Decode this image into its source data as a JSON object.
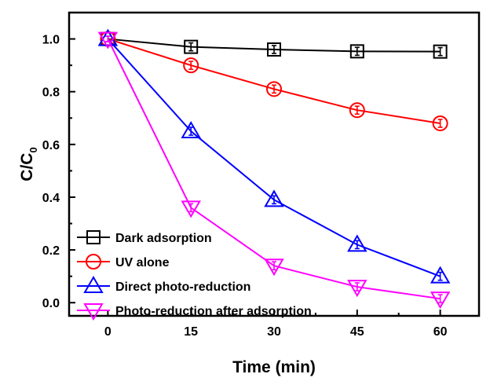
{
  "chart_data": {
    "type": "line",
    "title": "",
    "xlabel": "Time (min)",
    "ylabel": {
      "main": "C/C",
      "sub": "0"
    },
    "xlim": [
      -7,
      67
    ],
    "ylim": [
      -0.05,
      1.1
    ],
    "xticks": [
      0,
      15,
      30,
      45,
      60
    ],
    "xtick_labels": [
      "0",
      "15",
      "30",
      "45",
      "60"
    ],
    "yticks": [
      0.0,
      0.2,
      0.4,
      0.6,
      0.8,
      1.0
    ],
    "ytick_labels": [
      "0.0",
      "0.2",
      "0.4",
      "0.6",
      "0.8",
      "1.0"
    ],
    "grid": false,
    "legend_position": "bottom-left",
    "x": [
      0,
      15,
      30,
      45,
      60
    ],
    "series": [
      {
        "name": "Dark adsorption",
        "color": "#000000",
        "marker": "square",
        "values": [
          1.0,
          0.97,
          0.96,
          0.953,
          0.952
        ],
        "error": [
          0.01,
          0.015,
          0.015,
          0.015,
          0.015
        ]
      },
      {
        "name": "UV alone",
        "color": "#ff0000",
        "marker": "circle",
        "values": [
          1.0,
          0.9,
          0.81,
          0.73,
          0.68
        ],
        "error": [
          0.01,
          0.015,
          0.015,
          0.015,
          0.015
        ]
      },
      {
        "name": "Direct photo-reduction",
        "color": "#0000ff",
        "marker": "triangle-up",
        "values": [
          1.0,
          0.65,
          0.39,
          0.22,
          0.1
        ],
        "error": [
          0.01,
          0.015,
          0.015,
          0.015,
          0.015
        ]
      },
      {
        "name": "Photo-reduction after adsorption",
        "color": "#ff00ff",
        "marker": "triangle-down",
        "values": [
          1.0,
          0.36,
          0.14,
          0.06,
          0.015
        ],
        "error": [
          0.01,
          0.015,
          0.015,
          0.015,
          0.015
        ]
      }
    ]
  }
}
